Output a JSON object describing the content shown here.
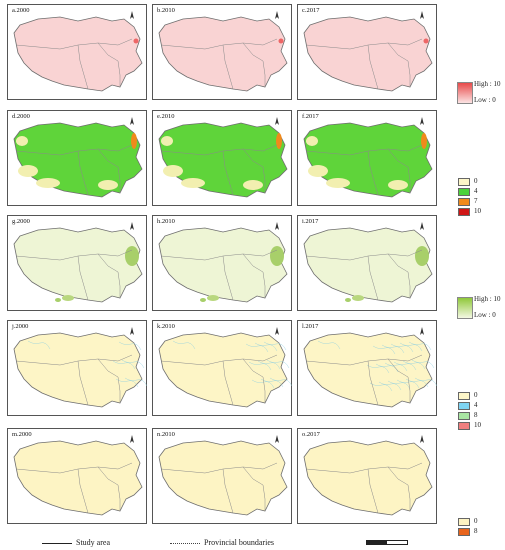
{
  "panels": [
    {
      "label": "a.2000",
      "theme": "pink"
    },
    {
      "label": "b.2010",
      "theme": "pink"
    },
    {
      "label": "c.2017",
      "theme": "pink"
    },
    {
      "label": "d.2000",
      "theme": "green"
    },
    {
      "label": "e.2010",
      "theme": "green"
    },
    {
      "label": "f.2017",
      "theme": "green"
    },
    {
      "label": "g.2000",
      "theme": "lightgreen"
    },
    {
      "label": "h.2010",
      "theme": "lightgreen"
    },
    {
      "label": "i.2017",
      "theme": "lightgreen"
    },
    {
      "label": "j.2000",
      "theme": "yellowlines"
    },
    {
      "label": "k.2010",
      "theme": "yellowlines"
    },
    {
      "label": "l.2017",
      "theme": "yellowlines"
    },
    {
      "label": "m.2000",
      "theme": "yellow"
    },
    {
      "label": "n.2010",
      "theme": "yellow"
    },
    {
      "label": "o.2017",
      "theme": "yellow"
    }
  ],
  "legends": {
    "row1": {
      "high": "High : 10",
      "low": "Low : 0",
      "high_color": "#e84a4a",
      "low_color": "#fbe3e3"
    },
    "row2": {
      "classes": [
        {
          "label": "0",
          "color": "#fdf6c8"
        },
        {
          "label": "4",
          "color": "#4cd23a"
        },
        {
          "label": "7",
          "color": "#f08a1c"
        },
        {
          "label": "10",
          "color": "#d01616"
        }
      ]
    },
    "row3": {
      "high": "High : 10",
      "low": "Low : 0",
      "high_color": "#8fc83a",
      "low_color": "#f3f8e2"
    },
    "row4": {
      "classes": [
        {
          "label": "0",
          "color": "#fdf6c8"
        },
        {
          "label": "4",
          "color": "#7fd4f2"
        },
        {
          "label": "8",
          "color": "#a9e6a3"
        },
        {
          "label": "10",
          "color": "#f08080"
        }
      ]
    },
    "row5": {
      "classes": [
        {
          "label": "0",
          "color": "#fdf3c2"
        },
        {
          "label": "8",
          "color": "#e8641c"
        }
      ]
    }
  },
  "bottom": {
    "study_area": "Study area",
    "provincial": "Provincial boundaries"
  },
  "colors": {
    "pink": "#f9d3d3",
    "green": "#5fd43a",
    "lightgreen": "#eef5d5",
    "yellow": "#fdf4c4",
    "boundary": "#7a7a7a"
  }
}
